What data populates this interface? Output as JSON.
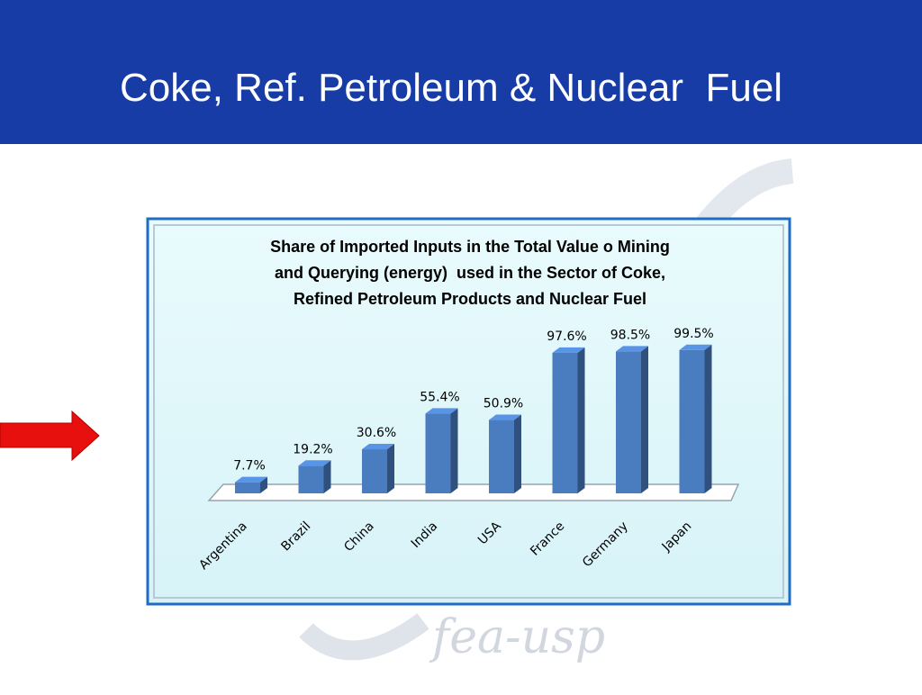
{
  "slide_title": "Coke, Ref. Petroleum & Nuclear  Fuel",
  "watermark": "fea-usp",
  "chart_data": {
    "type": "bar",
    "title": [
      "Share of Imported Inputs in the Total Value o Mining",
      "and Querying (energy)  used in the Sector of Coke,",
      "Refined Petroleum Products and Nuclear Fuel"
    ],
    "categories": [
      "Argentina",
      "Brazil",
      "China",
      "India",
      "USA",
      "France",
      "Germany",
      "Japan"
    ],
    "values": [
      7.7,
      19.2,
      30.6,
      55.4,
      50.9,
      97.6,
      98.5,
      99.5
    ],
    "value_labels": [
      "7.7%",
      "19.2%",
      "30.6%",
      "55.4%",
      "50.9%",
      "97.6%",
      "98.5%",
      "99.5%"
    ],
    "color": "#4a7cc0"
  }
}
